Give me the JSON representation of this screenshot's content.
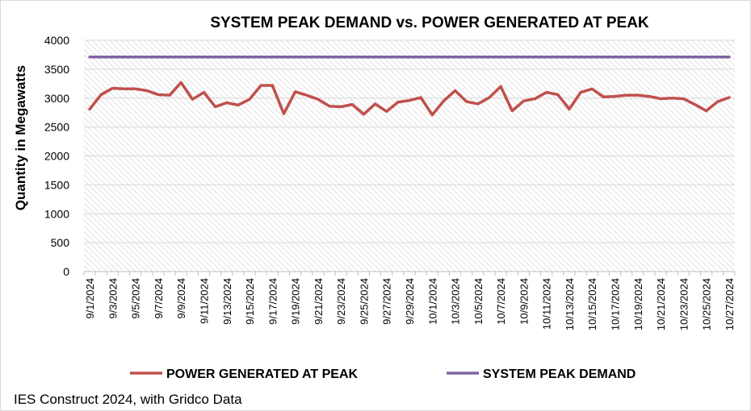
{
  "chart_data": {
    "type": "line",
    "title": "SYSTEM PEAK DEMAND vs. POWER GENERATED AT PEAK",
    "ylabel": "Quantity in Megawatts",
    "xlabel": "",
    "ylim": [
      0,
      4000
    ],
    "yticks": [
      0,
      500,
      1000,
      1500,
      2000,
      2500,
      3000,
      3500,
      4000
    ],
    "grid": true,
    "legend": "bottom",
    "x": [
      "9/1/2024",
      "9/2/2024",
      "9/3/2024",
      "9/4/2024",
      "9/5/2024",
      "9/6/2024",
      "9/7/2024",
      "9/8/2024",
      "9/9/2024",
      "9/10/2024",
      "9/11/2024",
      "9/12/2024",
      "9/13/2024",
      "9/14/2024",
      "9/15/2024",
      "9/16/2024",
      "9/17/2024",
      "9/18/2024",
      "9/19/2024",
      "9/20/2024",
      "9/21/2024",
      "9/22/2024",
      "9/23/2024",
      "9/24/2024",
      "9/25/2024",
      "9/26/2024",
      "9/27/2024",
      "9/28/2024",
      "9/29/2024",
      "9/30/2024",
      "10/1/2024",
      "10/2/2024",
      "10/3/2024",
      "10/4/2024",
      "10/5/2024",
      "10/6/2024",
      "10/7/2024",
      "10/8/2024",
      "10/9/2024",
      "10/10/2024",
      "10/11/2024",
      "10/12/2024",
      "10/13/2024",
      "10/14/2024",
      "10/15/2024",
      "10/16/2024",
      "10/17/2024",
      "10/18/2024",
      "10/19/2024",
      "10/20/2024",
      "10/21/2024",
      "10/22/2024",
      "10/23/2024",
      "10/24/2024",
      "10/25/2024",
      "10/26/2024",
      "10/27/2024"
    ],
    "xtick_labels": [
      "9/1/2024",
      "9/3/2024",
      "9/5/2024",
      "9/7/2024",
      "9/9/2024",
      "9/11/2024",
      "9/13/2024",
      "9/15/2024",
      "9/17/2024",
      "9/19/2024",
      "9/21/2024",
      "9/23/2024",
      "9/25/2024",
      "9/27/2024",
      "9/29/2024",
      "10/1/2024",
      "10/3/2024",
      "10/5/2024",
      "10/7/2024",
      "10/9/2024",
      "10/11/2024",
      "10/13/2024",
      "10/15/2024",
      "10/17/2024",
      "10/19/2024",
      "10/21/2024",
      "10/23/2024",
      "10/25/2024",
      "10/27/2024"
    ],
    "series": [
      {
        "name": "POWER GENERATED AT PEAK",
        "color": "#c0504d",
        "values": [
          2810,
          3060,
          3170,
          3160,
          3160,
          3130,
          3060,
          3050,
          3270,
          2980,
          3100,
          2850,
          2920,
          2880,
          2980,
          3220,
          3220,
          2730,
          3110,
          3050,
          2980,
          2860,
          2850,
          2890,
          2720,
          2900,
          2770,
          2930,
          2960,
          3010,
          2710,
          2950,
          3130,
          2940,
          2900,
          3010,
          3200,
          2780,
          2950,
          2990,
          3100,
          3060,
          2810,
          3100,
          3160,
          3020,
          3030,
          3050,
          3050,
          3030,
          2990,
          3000,
          2990,
          2890,
          2780,
          2940,
          3010
        ]
      },
      {
        "name": "SYSTEM PEAK DEMAND",
        "color": "#8064a2",
        "values": [
          3710,
          3710,
          3710,
          3710,
          3710,
          3710,
          3710,
          3710,
          3710,
          3710,
          3710,
          3710,
          3710,
          3710,
          3710,
          3710,
          3710,
          3710,
          3710,
          3710,
          3710,
          3710,
          3710,
          3710,
          3710,
          3710,
          3710,
          3710,
          3710,
          3710,
          3710,
          3710,
          3710,
          3710,
          3710,
          3710,
          3710,
          3710,
          3710,
          3710,
          3710,
          3710,
          3710,
          3710,
          3710,
          3710,
          3710,
          3710,
          3710,
          3710,
          3710,
          3710,
          3710,
          3710,
          3710,
          3710,
          3710
        ]
      }
    ],
    "source_note": "IES Construct 2024, with Gridco Data"
  }
}
